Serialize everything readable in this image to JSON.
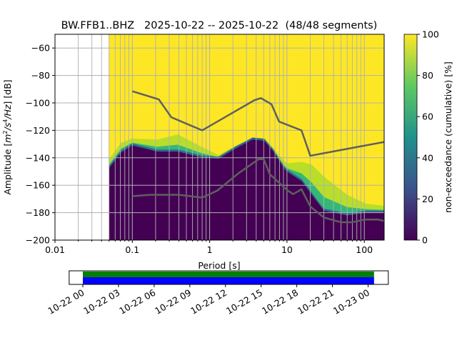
{
  "chart_data": {
    "type": "heatmap",
    "title": "BW.FFB1..BHZ   2025-10-22 -- 2025-10-22  (48/48 segments)",
    "xlabel": "Period [s]",
    "ylabel_parts": [
      "Amplitude [",
      "m",
      "2",
      "/s",
      "4",
      "/Hz",
      "] [dB]"
    ],
    "xscale": "log",
    "xlim": [
      0.01,
      180
    ],
    "ylim": [
      -200,
      -50
    ],
    "xticks": [
      0.01,
      0.1,
      1,
      10,
      100
    ],
    "xtick_labels": [
      "0.01",
      "0.1",
      "1",
      "10",
      "100"
    ],
    "yticks": [
      -60,
      -80,
      -100,
      -120,
      -140,
      -160,
      -180,
      -200
    ],
    "ytick_labels": [
      "−60",
      "−80",
      "−100",
      "−120",
      "−140",
      "−160",
      "−180",
      "−200"
    ],
    "grid": true,
    "colorbar": {
      "label": "non-exceedance (cumulative) [%]",
      "range": [
        0,
        100
      ],
      "ticks": [
        "0",
        "20",
        "40",
        "60",
        "80",
        "100"
      ],
      "colormap": [
        "#440154",
        "#3b528b",
        "#21918c",
        "#5ec962",
        "#fde725"
      ]
    },
    "density_boundaries": {
      "data_start_period": 0.05,
      "period": [
        0.05,
        0.072,
        0.1,
        0.21,
        0.39,
        0.79,
        1.3,
        2.2,
        3.6,
        5.1,
        6.7,
        9.1,
        10,
        15.5,
        21,
        30,
        60,
        105,
        180
      ],
      "dark_top_db": [
        -147.5,
        -136,
        -131,
        -135.5,
        -135.5,
        -139.7,
        -140.7,
        -133,
        -126.7,
        -127.7,
        -135.5,
        -147.5,
        -150,
        -157,
        -167,
        -178.5,
        -182,
        -180,
        -180
      ],
      "saturated_bottom_db": [
        -141,
        -129,
        -126,
        -126.7,
        -123,
        -132,
        -138,
        -131,
        -126,
        -125.5,
        -133,
        -142,
        -144,
        -143,
        -145,
        -153.7,
        -167,
        -173.5,
        -175
      ]
    },
    "noise_models": [
      {
        "name": "NHNM",
        "color": "#5f5f5f",
        "period": [
          0.1,
          0.22,
          0.32,
          0.8,
          3.8,
          4.6,
          6.3,
          7.9,
          15.4,
          20,
          180
        ],
        "db": [
          -91.5,
          -97.4,
          -110.5,
          -120,
          -98,
          -96.5,
          -101,
          -113.6,
          -120,
          -138.5,
          -128.5
        ]
      },
      {
        "name": "NLNM",
        "color": "#5f5f5f",
        "period": [
          0.1,
          0.17,
          0.4,
          0.8,
          1.25,
          2.4,
          4.3,
          5.0,
          6.0,
          10,
          12,
          15.4,
          20,
          30,
          50,
          70,
          100,
          150,
          180
        ],
        "db": [
          -168,
          -167,
          -167,
          -169,
          -164,
          -151,
          -141,
          -141,
          -152,
          -163.5,
          -166.5,
          -163,
          -175.5,
          -183.5,
          -187,
          -187,
          -185,
          -185,
          -186
        ]
      }
    ],
    "coverage": {
      "tick_labels": [
        "10-22 00",
        "10-22 03",
        "10-22 06",
        "10-22 09",
        "10-22 12",
        "10-22 15",
        "10-22 18",
        "10-22 21",
        "10-23 00"
      ],
      "tick_hours": [
        0,
        3,
        6,
        9,
        12,
        15,
        18,
        21,
        24
      ],
      "range_hours": [
        -1.15,
        25.7
      ],
      "data_hours": [
        0,
        24.5
      ],
      "bar_colors": [
        "#008000",
        "#0000ff"
      ]
    }
  }
}
